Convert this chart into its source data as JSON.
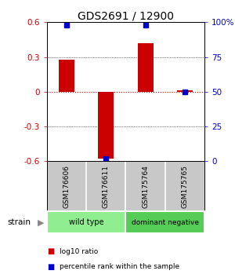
{
  "title": "GDS2691 / 12900",
  "samples": [
    "GSM176606",
    "GSM176611",
    "GSM175764",
    "GSM175765"
  ],
  "log10_ratio": [
    0.28,
    -0.58,
    0.42,
    0.01
  ],
  "percentile_rank": [
    98,
    2,
    98,
    50
  ],
  "groups": [
    {
      "label": "wild type",
      "samples": [
        0,
        1
      ],
      "color": "#90EE90"
    },
    {
      "label": "dominant negative",
      "samples": [
        2,
        3
      ],
      "color": "#55CC55"
    }
  ],
  "ylim_left": [
    -0.6,
    0.6
  ],
  "ylim_right": [
    0,
    100
  ],
  "yticks_left": [
    -0.6,
    -0.3,
    0.0,
    0.3,
    0.6
  ],
  "yticks_right": [
    0,
    25,
    50,
    75,
    100
  ],
  "ytick_labels_right": [
    "0",
    "25",
    "50",
    "75",
    "100%"
  ],
  "bar_color": "#CC0000",
  "dot_color": "#0000CC",
  "hline_color": "#CC0000",
  "grid_color": "#000000",
  "bg_color": "#FFFFFF",
  "label_area_bg": "#C8C8C8",
  "strain_label": "strain",
  "arrow": "▶",
  "legend_ratio_label": "log10 ratio",
  "legend_pct_label": "percentile rank within the sample"
}
